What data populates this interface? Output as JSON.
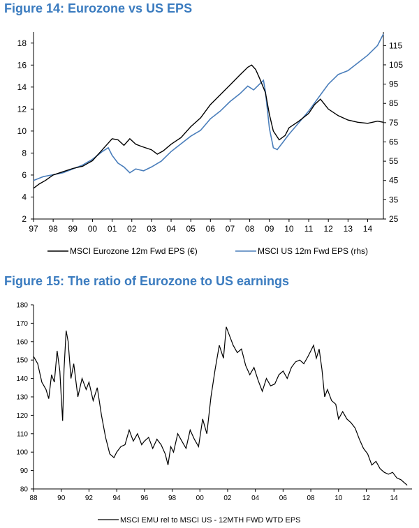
{
  "figures": [
    {
      "title": "Figure 14: Eurozone vs US EPS"
    },
    {
      "title": "Figure 15: The ratio of Eurozone to US earnings"
    }
  ],
  "chart_data": [
    {
      "type": "line",
      "title": "Figure 14: Eurozone vs US EPS",
      "x_ticks": [
        "97",
        "98",
        "99",
        "00",
        "01",
        "02",
        "03",
        "04",
        "05",
        "06",
        "07",
        "08",
        "09",
        "10",
        "11",
        "12",
        "13",
        "14"
      ],
      "xlim": [
        1997.0,
        2014.8
      ],
      "ylim": [
        2,
        19
      ],
      "y_ticks": [
        2,
        4,
        6,
        8,
        10,
        12,
        14,
        16,
        18
      ],
      "y2lim": [
        25,
        122
      ],
      "y2_ticks": [
        25,
        35,
        45,
        55,
        65,
        75,
        85,
        95,
        105,
        115
      ],
      "grid": false,
      "legend_position": "bottom",
      "series": [
        {
          "name": "MSCI Eurozone 12m Fwd EPS (€)",
          "axis": "left",
          "color": "#000000",
          "x": [
            1997.0,
            1997.3,
            1997.6,
            1998.0,
            1998.5,
            1999.0,
            1999.5,
            2000.0,
            2000.5,
            2000.8,
            2001.0,
            2001.3,
            2001.6,
            2001.9,
            2002.2,
            2002.5,
            2003.0,
            2003.3,
            2003.6,
            2004.0,
            2004.5,
            2005.0,
            2005.5,
            2006.0,
            2006.5,
            2007.0,
            2007.5,
            2007.9,
            2008.1,
            2008.3,
            2008.5,
            2008.8,
            2009.0,
            2009.2,
            2009.5,
            2009.8,
            2010.0,
            2010.5,
            2011.0,
            2011.3,
            2011.6,
            2012.0,
            2012.5,
            2013.0,
            2013.5,
            2014.0,
            2014.5,
            2014.8
          ],
          "values": [
            4.8,
            5.2,
            5.5,
            6.0,
            6.3,
            6.6,
            6.8,
            7.3,
            8.3,
            8.9,
            9.3,
            9.2,
            8.7,
            9.3,
            8.8,
            8.6,
            8.3,
            7.9,
            8.2,
            8.8,
            9.4,
            10.4,
            11.2,
            12.4,
            13.3,
            14.2,
            15.1,
            15.8,
            16.0,
            15.6,
            14.8,
            13.5,
            11.5,
            10.0,
            9.2,
            9.6,
            10.3,
            10.9,
            11.6,
            12.4,
            12.9,
            12.0,
            11.4,
            11.0,
            10.8,
            10.7,
            10.9,
            10.8
          ]
        },
        {
          "name": "MSCI US 12m Fwd EPS (rhs)",
          "axis": "right",
          "color": "#4a7ebb",
          "x": [
            1997.0,
            1997.5,
            1998.0,
            1998.5,
            1999.0,
            1999.5,
            2000.0,
            2000.5,
            2000.8,
            2001.0,
            2001.3,
            2001.6,
            2001.9,
            2002.2,
            2002.6,
            2003.0,
            2003.5,
            2004.0,
            2004.5,
            2005.0,
            2005.5,
            2006.0,
            2006.5,
            2007.0,
            2007.5,
            2007.9,
            2008.2,
            2008.5,
            2008.7,
            2008.8,
            2009.0,
            2009.2,
            2009.4,
            2009.7,
            2010.0,
            2010.5,
            2011.0,
            2011.5,
            2012.0,
            2012.5,
            2013.0,
            2013.5,
            2014.0,
            2014.5,
            2014.8
          ],
          "values": [
            45,
            47,
            48,
            49,
            51,
            53,
            56,
            60,
            62,
            58,
            54,
            52,
            49,
            51,
            50,
            52,
            55,
            60,
            64,
            68,
            71,
            77,
            81,
            86,
            90,
            94,
            92,
            95,
            97,
            91,
            72,
            62,
            61,
            65,
            69,
            75,
            81,
            88,
            95,
            100,
            102,
            106,
            110,
            115,
            121
          ]
        }
      ]
    },
    {
      "type": "line",
      "title": "Figure 15: The ratio of Eurozone to US earnings",
      "x_ticks": [
        "88",
        "90",
        "92",
        "94",
        "96",
        "98",
        "00",
        "02",
        "04",
        "06",
        "08",
        "10",
        "12",
        "14"
      ],
      "xlim": [
        1988.0,
        2015.3
      ],
      "ylim": [
        80,
        180
      ],
      "y_ticks": [
        80,
        90,
        100,
        110,
        120,
        130,
        140,
        150,
        160,
        170,
        180
      ],
      "grid": false,
      "legend_position": "bottom",
      "series": [
        {
          "name": "MSCI EMU rel to MSCI US - 12MTH FWD WTD EPS",
          "color": "#000000",
          "x": [
            1988.0,
            1988.3,
            1988.6,
            1988.9,
            1989.1,
            1989.3,
            1989.5,
            1989.7,
            1989.9,
            1990.0,
            1990.1,
            1990.2,
            1990.35,
            1990.5,
            1990.7,
            1990.9,
            1991.2,
            1991.5,
            1991.8,
            1992.0,
            1992.3,
            1992.6,
            1992.9,
            1993.2,
            1993.5,
            1993.8,
            1994.0,
            1994.3,
            1994.6,
            1994.9,
            1995.2,
            1995.5,
            1995.8,
            1996.0,
            1996.3,
            1996.6,
            1996.9,
            1997.2,
            1997.5,
            1997.7,
            1997.9,
            1998.1,
            1998.4,
            1998.7,
            1999.0,
            1999.3,
            1999.6,
            1999.9,
            2000.2,
            2000.5,
            2000.8,
            2001.1,
            2001.4,
            2001.7,
            2001.9,
            2002.1,
            2002.4,
            2002.7,
            2003.0,
            2003.3,
            2003.6,
            2003.9,
            2004.2,
            2004.5,
            2004.8,
            2005.1,
            2005.4,
            2005.7,
            2006.0,
            2006.3,
            2006.6,
            2006.9,
            2007.2,
            2007.5,
            2007.8,
            2008.0,
            2008.2,
            2008.4,
            2008.6,
            2008.8,
            2009.0,
            2009.2,
            2009.5,
            2009.8,
            2010.0,
            2010.3,
            2010.6,
            2010.9,
            2011.2,
            2011.5,
            2011.8,
            2012.1,
            2012.4,
            2012.7,
            2013.0,
            2013.3,
            2013.6,
            2013.9,
            2014.2,
            2014.5,
            2014.8,
            2014.95
          ],
          "values": [
            152,
            148,
            138,
            134,
            129,
            142,
            138,
            155,
            144,
            130,
            117,
            145,
            166,
            160,
            140,
            148,
            130,
            140,
            134,
            138,
            128,
            135,
            120,
            108,
            99,
            97,
            100,
            103,
            104,
            112,
            106,
            110,
            104,
            106,
            108,
            102,
            107,
            104,
            99,
            93,
            103,
            100,
            110,
            106,
            102,
            112,
            107,
            103,
            118,
            110,
            130,
            145,
            158,
            151,
            168,
            164,
            158,
            154,
            156,
            147,
            142,
            146,
            139,
            133,
            140,
            136,
            137,
            142,
            144,
            140,
            146,
            149,
            150,
            148,
            152,
            155,
            158,
            151,
            156,
            145,
            130,
            134,
            128,
            126,
            118,
            122,
            118,
            116,
            113,
            107,
            102,
            99,
            93,
            95,
            91,
            89,
            88,
            89,
            86,
            85,
            83,
            82
          ]
        }
      ]
    }
  ]
}
